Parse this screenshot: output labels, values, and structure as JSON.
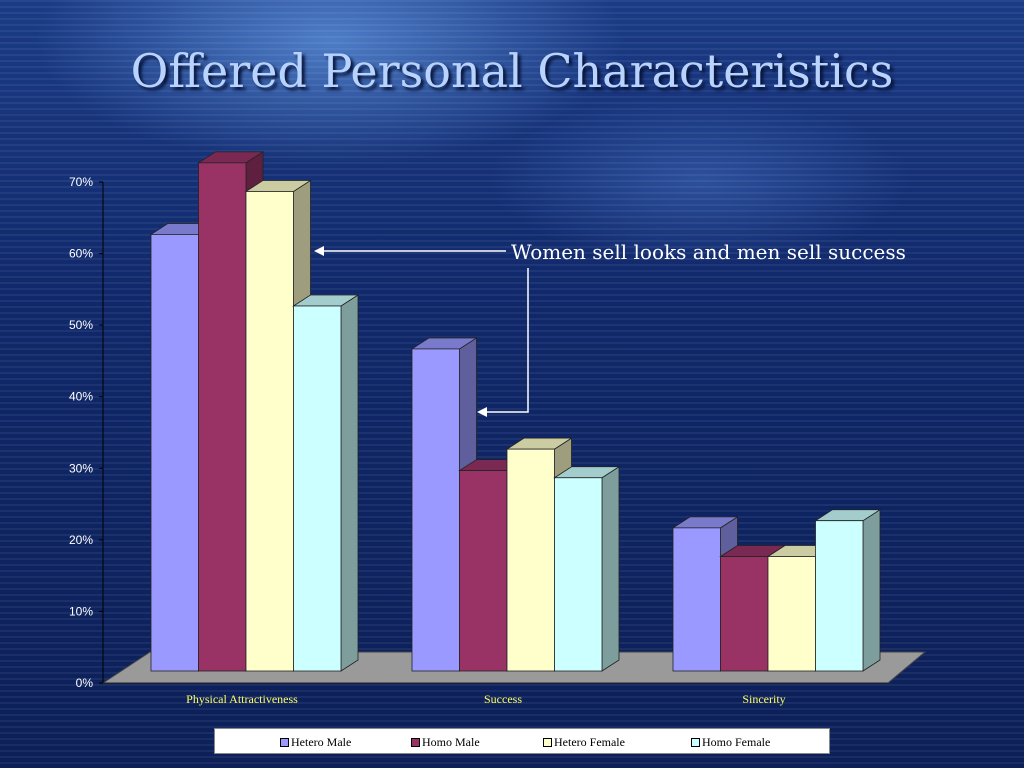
{
  "slide": {
    "title": "Offered Personal Characteristics"
  },
  "annotation": {
    "text": "Women sell looks and men sell success"
  },
  "chart_data": {
    "type": "bar",
    "categories": [
      "Physical Attractiveness",
      "Success",
      "Sincerity"
    ],
    "series": [
      {
        "name": "Hetero Male",
        "values": [
          61,
          45,
          20
        ],
        "color": "#9999ff"
      },
      {
        "name": "Homo Male",
        "values": [
          71,
          28,
          16
        ],
        "color": "#993366"
      },
      {
        "name": "Hetero Female",
        "values": [
          67,
          31,
          16
        ],
        "color": "#ffffcc"
      },
      {
        "name": "Homo Female",
        "values": [
          51,
          27,
          21
        ],
        "color": "#ccffff"
      }
    ],
    "ylim": [
      0,
      70
    ],
    "yticks": [
      "0%",
      "10%",
      "20%",
      "30%",
      "40%",
      "50%",
      "60%",
      "70%"
    ],
    "grid": false,
    "legend_position": "bottom"
  }
}
